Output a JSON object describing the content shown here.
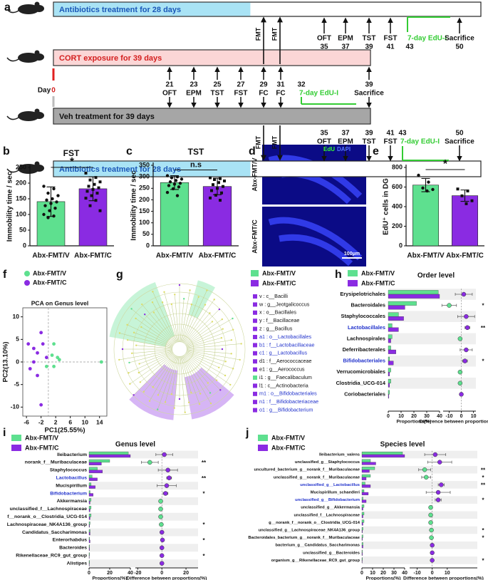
{
  "timeline": {
    "panel": "a",
    "bars": [
      {
        "text": "Antibiotics treatment for 28 days",
        "color": "#a9e3f5",
        "text_color": "#1a57b8"
      },
      {
        "text": "CORT exposure for 39 days",
        "color": "#fbd6d6",
        "text_color": "#d42020"
      },
      {
        "text": "Veh treatment for 39 days",
        "color": "#a6a6a6",
        "text_color": "#111111"
      },
      {
        "text": "Antibiotics treatment for 28 days",
        "color": "#a9e3f5",
        "text_color": "#1a57b8"
      }
    ],
    "fmt": [
      "FMT",
      "FMT",
      "FMT",
      "FMT"
    ],
    "day_label": "Day",
    "day_zero": "0",
    "rows": [
      {
        "events": [
          {
            "day": 35,
            "name": "OFT"
          },
          {
            "day": 37,
            "name": "EPM"
          },
          {
            "day": 39,
            "name": "TST"
          },
          {
            "day": 41,
            "name": "FST"
          },
          {
            "day": 43,
            "name": "7-day EdU-I",
            "color": "#33cc33"
          },
          {
            "day": 50,
            "name": "Sacrifice"
          }
        ]
      },
      {
        "events": [
          {
            "day": 21,
            "name": "OFT"
          },
          {
            "day": 23,
            "name": "EPM"
          },
          {
            "day": 25,
            "name": "TST"
          },
          {
            "day": 27,
            "name": "FST"
          },
          {
            "day": 29,
            "name": "FC"
          },
          {
            "day": 31,
            "name": "FC"
          },
          {
            "day": 32,
            "name": "7-day EdU-I",
            "color": "#33cc33"
          },
          {
            "day": 39,
            "name": "Sacrifice"
          }
        ]
      },
      {
        "events": [
          {
            "day": 35,
            "name": "OFT"
          },
          {
            "day": 37,
            "name": "EPM"
          },
          {
            "day": 39,
            "name": "TST"
          },
          {
            "day": 41,
            "name": "FST"
          },
          {
            "day": 43,
            "name": "7-day EdU-I",
            "color": "#33cc33"
          },
          {
            "day": 50,
            "name": "Sacrifice"
          }
        ]
      }
    ]
  },
  "image_panel": {
    "panel": "d",
    "labels": [
      "Abx-FMT/V",
      "Abx-FMT/C"
    ],
    "channels": [
      {
        "name": "EdU",
        "color": "#33ff33"
      },
      {
        "name": "DAPI",
        "color": "#5577ff"
      }
    ],
    "scale": "100μm"
  },
  "cladogram": {
    "panel": "g",
    "legend": [
      {
        "name": "Abx-FMT/V",
        "color": "#5ee08f"
      },
      {
        "name": "Abx-FMT/C",
        "color": "#8a2be2"
      }
    ],
    "items": [
      {
        "text": "v : c__Bacilli",
        "color": "#111111",
        "square": "#8a2be2"
      },
      {
        "text": "w : g__Jeotgalicoccus",
        "color": "#111111",
        "square": "#8a2be2"
      },
      {
        "text": "x : o__Bacillales",
        "color": "#111111",
        "square": "#8a2be2"
      },
      {
        "text": "y : f__Bacillaceae",
        "color": "#111111",
        "square": "#8a2be2"
      },
      {
        "text": "z : g__Bacillus",
        "color": "#111111",
        "square": "#8a2be2"
      },
      {
        "text": "a1 : o__Lactobacillales",
        "color": "#2233cc",
        "square": "#8a2be2"
      },
      {
        "text": "b1 : f__Lactobacillaceae",
        "color": "#2233cc",
        "square": "#8a2be2"
      },
      {
        "text": "c1 : g__Lactobacillus",
        "color": "#2233cc",
        "square": "#8a2be2"
      },
      {
        "text": "d1 : f__Aerococcaceae",
        "color": "#111111",
        "square": "#8a2be2"
      },
      {
        "text": "e1 : g__Aerococcus",
        "color": "#111111",
        "square": "#8a2be2"
      },
      {
        "text": "i1 : g__Faecalibaculum",
        "color": "#111111",
        "square": "#5ee08f"
      },
      {
        "text": "l1 : c__Actinobacteria",
        "color": "#111111",
        "square": "#8a2be2"
      },
      {
        "text": "m1 : o__Bifidobacteriales",
        "color": "#2233cc",
        "square": "#8a2be2"
      },
      {
        "text": "n1 : f__Bifidobacteriaceae",
        "color": "#2233cc",
        "square": "#8a2be2"
      },
      {
        "text": "o1 : g__Bifidobacterium",
        "color": "#2233cc",
        "square": "#8a2be2"
      }
    ]
  },
  "chart_data": [
    {
      "type": "bar",
      "panel": "b",
      "title": "FST",
      "ylabel": "Immobility time / sec",
      "categories": [
        "Abx-FMT/V",
        "Abx-FMT/C"
      ],
      "colors": [
        "#5ee08f",
        "#8a2be2"
      ],
      "values": [
        141,
        182
      ],
      "errors": [
        47,
        38
      ],
      "points": [
        [
          190,
          182,
          168,
          160,
          150,
          146,
          140,
          135,
          128,
          120,
          112,
          100,
          95,
          90
        ],
        [
          232,
          218,
          210,
          204,
          196,
          190,
          185,
          180,
          174,
          168,
          160,
          152,
          145,
          128,
          112
        ]
      ],
      "significance": "*",
      "ylim": [
        0,
        250
      ],
      "yticks": [
        0,
        50,
        100,
        150,
        200,
        250
      ]
    },
    {
      "type": "bar",
      "panel": "c",
      "title": "TST",
      "ylabel": "Immobility time / sec",
      "categories": [
        "Abx-FMT/V",
        "Abx-FMT/C"
      ],
      "colors": [
        "#5ee08f",
        "#8a2be2"
      ],
      "values": [
        275,
        258
      ],
      "errors": [
        30,
        36
      ],
      "points": [
        [
          305,
          300,
          296,
          290,
          284,
          278,
          272,
          268,
          262,
          256,
          248,
          232,
          218
        ],
        [
          296,
          292,
          288,
          282,
          275,
          266,
          258,
          250,
          240,
          230,
          220,
          208,
          198
        ]
      ],
      "significance": "n.s",
      "ylim": [
        0,
        350
      ],
      "yticks": [
        0,
        50,
        100,
        150,
        200,
        250,
        300,
        350
      ]
    },
    {
      "type": "bar",
      "panel": "e",
      "ylabel": "EdU⁺ cells in DG",
      "categories": [
        "Abx-FMT/V",
        "Abx-FMT/C"
      ],
      "colors": [
        "#5ee08f",
        "#8a2be2"
      ],
      "values": [
        620,
        512
      ],
      "errors": [
        68,
        58
      ],
      "points": [
        [
          720,
          650,
          590,
          575,
          560
        ],
        [
          580,
          560,
          510,
          460,
          430
        ]
      ],
      "significance": "*",
      "ylim": [
        0,
        800
      ],
      "yticks": [
        0,
        200,
        400,
        600,
        800
      ]
    },
    {
      "type": "scatter",
      "panel": "f",
      "title": "PCA on Genus level",
      "xlabel": "PC1(25.55%)",
      "ylabel": "PC2(13.10%)",
      "xlim": [
        -7,
        16
      ],
      "xticks": [
        -6,
        -2,
        2,
        6,
        10,
        14
      ],
      "ylim": [
        -12,
        12
      ],
      "yticks": [
        -10,
        -5,
        0,
        5,
        10
      ],
      "series": [
        {
          "name": "Abx-FMT/V",
          "color": "#5ee08f",
          "x": [
            1.5,
            1,
            2.5,
            3,
            1.5,
            -0.5,
            14.5
          ],
          "y": [
            4,
            1.5,
            1,
            0.5,
            -1,
            -1,
            0
          ]
        },
        {
          "name": "Abx-FMT/C",
          "color": "#8a2be2",
          "x": [
            -5.5,
            -4,
            -2,
            -1.5,
            -3,
            -0.5,
            -4,
            -5,
            -3,
            -2
          ],
          "y": [
            4,
            3,
            6.5,
            4,
            2,
            1,
            0,
            -1.5,
            -3,
            -9.5
          ]
        }
      ]
    },
    {
      "type": "diffbar",
      "panel": "h",
      "title": "Order level",
      "categories": [
        "Erysipelotrichales",
        "Bacteroidales",
        "Staphylococcales",
        "Lactobacillales",
        "Lachnospirales",
        "Deferribacterales",
        "Bifidobacteriales",
        "Verrucomicrobiales",
        "Clostridia_UCG-014",
        "Coriobacteriales"
      ],
      "label_colors": [
        "#111111",
        "#111111",
        "#111111",
        "#2233cc",
        "#111111",
        "#111111",
        "#2233cc",
        "#111111",
        "#111111",
        "#111111"
      ],
      "series": [
        {
          "name": "Abx-FMT/V",
          "color": "#5ee08f",
          "values": [
            39,
            22,
            8,
            3,
            3,
            2,
            1,
            2,
            2,
            1
          ]
        },
        {
          "name": "Abx-FMT/C",
          "color": "#8a2be2",
          "values": [
            40,
            13,
            12,
            8,
            2,
            6,
            4,
            1,
            1,
            0.5
          ]
        }
      ],
      "difference": [
        2,
        -10,
        4,
        5,
        -1,
        4,
        3,
        -1,
        -1,
        0
      ],
      "ci_low": [
        -5,
        -16,
        -3,
        3,
        -2,
        -1,
        1,
        -2,
        -2,
        -0.5
      ],
      "ci_high": [
        9,
        -4,
        11,
        7,
        0,
        9,
        5,
        0,
        0,
        0.5
      ],
      "significance": [
        null,
        "*",
        null,
        "**",
        null,
        null,
        "*",
        null,
        null,
        null
      ],
      "xlabel": "Proportions(%)",
      "xlim": [
        0,
        40
      ],
      "xticks": [
        0,
        10,
        20,
        30,
        40
      ],
      "x2label": "Difference between proportions(%)",
      "x2lim": [
        -15,
        12
      ],
      "x2ticks": [
        -10,
        0,
        10
      ]
    },
    {
      "type": "diffbar",
      "panel": "i",
      "title": "Genus level",
      "categories": [
        "Ileibacterium",
        "norank_f__Muribaculaceae",
        "Staphylococcus",
        "Lactobacillus",
        "Mucispirillum",
        "Bifidobacterium",
        "Akkermansia",
        "unclassified_f__Lachnospiraceae",
        "f__norank_o__Clostridia_UCG-014",
        "Lachnospiraceae_NK4A136_group",
        "Candidatus_Saccharimonas",
        "Enterorhabdus",
        "Bacteroides",
        "Rikenellaceae_RC9_gut_group",
        "Alistipes"
      ],
      "label_colors": [
        "#111111",
        "#111111",
        "#111111",
        "#2233cc",
        "#111111",
        "#2233cc",
        "#111111",
        "#111111",
        "#111111",
        "#111111",
        "#111111",
        "#111111",
        "#111111",
        "#111111",
        "#111111"
      ],
      "series": [
        {
          "name": "Abx-FMT/V",
          "color": "#5ee08f",
          "values": [
            38,
            20,
            8,
            3,
            2,
            1,
            2,
            2,
            2,
            1,
            1,
            0.5,
            0.5,
            0.5,
            0.5
          ]
        },
        {
          "name": "Abx-FMT/C",
          "color": "#8a2be2",
          "values": [
            40,
            12,
            13,
            8,
            6,
            4,
            1,
            1,
            1,
            0.5,
            1,
            1,
            0.5,
            0.3,
            0.3
          ]
        }
      ],
      "difference": [
        2,
        -10,
        5,
        6,
        4,
        3,
        -1,
        -1,
        -1,
        -0.5,
        0,
        0.5,
        0,
        0,
        0
      ],
      "ci_low": [
        -5,
        -17,
        -3,
        4,
        -4,
        1,
        -2,
        -2,
        -2,
        -1,
        -1,
        0,
        -0.5,
        -0.5,
        -0.5
      ],
      "ci_high": [
        9,
        -3,
        13,
        8,
        12,
        5,
        0,
        0,
        0,
        0,
        1,
        1,
        0.5,
        0.5,
        0.5
      ],
      "significance": [
        null,
        "**",
        null,
        "**",
        null,
        "*",
        null,
        null,
        null,
        "*",
        null,
        "*",
        null,
        "*",
        null
      ],
      "xlabel": "Proportions(%)",
      "xlim": [
        0,
        40
      ],
      "xticks": [
        0,
        20,
        40
      ],
      "x2label": "Difference between proportions(%)",
      "x2lim": [
        -22,
        30
      ],
      "x2ticks": [
        -20,
        0,
        20
      ]
    },
    {
      "type": "diffbar",
      "panel": "j",
      "title": "Species level",
      "categories": [
        "Ileibacterium_valens",
        "unclassified_g__Staphylococcus",
        "uncultured_bacterium_g__norank_f__Muribaculaceae",
        "unclassified_g__norank_f__Muribaculaceae",
        "unclassified_g__Lactobacillus",
        "Mucispirillum_schaedleri",
        "unclassified_g__Bifidobacterium",
        "unclassified_g__Akkermansia",
        "unclassified_f__Lachnospiraceae",
        "g__norank_f__norank_o__Clostridia_UCG-014",
        "unclassified_g__Lachnospiraceae_NK4A136_group",
        "Bacteroidales_bacterium_g__norank_f__Muribaculaceae",
        "bacterium_g__Candidatus_Saccharimonas",
        "unclassified_g__Bacteroides",
        "organism_g__Rikenellaceae_RC9_gut_group"
      ],
      "label_colors": [
        "#111111",
        "#111111",
        "#111111",
        "#111111",
        "#2233cc",
        "#111111",
        "#2233cc",
        "#111111",
        "#111111",
        "#111111",
        "#111111",
        "#111111",
        "#111111",
        "#111111",
        "#111111"
      ],
      "series": [
        {
          "name": "Abx-FMT/V",
          "color": "#5ee08f",
          "values": [
            38,
            8,
            12,
            8,
            3,
            2,
            1,
            2,
            2,
            2,
            1,
            1,
            1,
            0.5,
            0.5
          ]
        },
        {
          "name": "Abx-FMT/C",
          "color": "#8a2be2",
          "values": [
            40,
            13,
            7,
            4,
            8,
            6,
            4,
            1,
            1,
            1,
            0.5,
            0.5,
            1,
            0.5,
            0.3
          ]
        }
      ],
      "difference": [
        2,
        5,
        -5,
        -4,
        6,
        4,
        4,
        -1,
        -1,
        -1,
        -0.5,
        -0.5,
        0,
        0,
        0
      ],
      "ci_low": [
        -5,
        -3,
        -9,
        -7,
        4,
        -4,
        2,
        -2,
        -2,
        -2,
        -1,
        -1,
        -1,
        -0.5,
        -0.5
      ],
      "ci_high": [
        9,
        13,
        -1,
        -1,
        8,
        12,
        6,
        0,
        0,
        0,
        0,
        0,
        1,
        0.5,
        0.5
      ],
      "significance": [
        null,
        null,
        "**",
        "*",
        "**",
        null,
        "*",
        null,
        null,
        null,
        "*",
        "*",
        null,
        null,
        "*"
      ],
      "xlabel": "Proportions(%)",
      "xlim": [
        0,
        40
      ],
      "xticks": [
        0,
        10,
        20,
        30,
        40
      ],
      "x2label": "Difference between proportions(%)",
      "x2lim": [
        -15,
        30
      ],
      "x2ticks": [
        -10,
        0,
        10
      ]
    }
  ]
}
